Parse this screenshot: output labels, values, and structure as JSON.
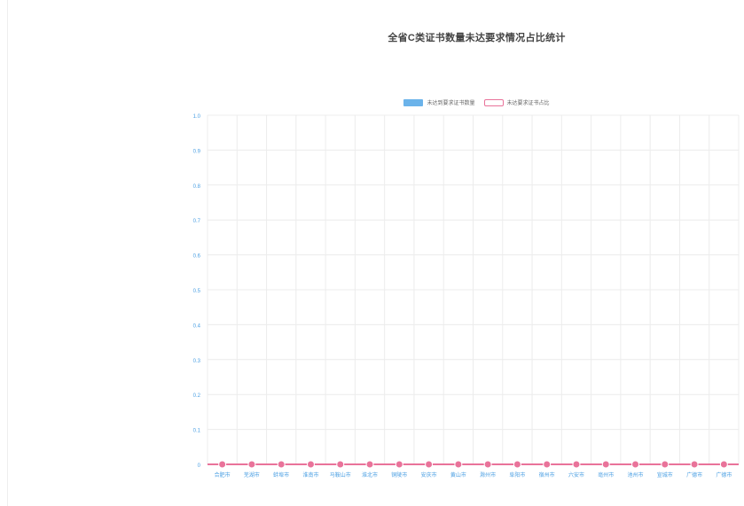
{
  "chart_data": {
    "type": "bar",
    "title": "全省C类证书数量未达要求情况占比统计",
    "xlabel": "",
    "ylabel": "",
    "categories": [
      "合肥市",
      "芜湖市",
      "蚌埠市",
      "淮南市",
      "马鞍山市",
      "淮北市",
      "铜陵市",
      "安庆市",
      "黄山市",
      "滁州市",
      "阜阳市",
      "宿州市",
      "六安市",
      "亳州市",
      "池州市",
      "宣城市",
      "广德市",
      "广德市"
    ],
    "series": [
      {
        "name": "未达到要求证书数量",
        "type": "bar",
        "color": "#6bb3ea",
        "values": [
          0,
          0,
          0,
          0,
          0,
          0,
          0,
          0,
          0,
          0,
          0,
          0,
          0,
          0,
          0,
          0,
          0,
          0
        ]
      },
      {
        "name": "未达要求证书占比",
        "type": "line",
        "color": "#e9739a",
        "values": [
          0,
          0,
          0,
          0,
          0,
          0,
          0,
          0,
          0,
          0,
          0,
          0,
          0,
          0,
          0,
          0,
          0,
          0
        ]
      }
    ],
    "ylim": [
      0,
      1
    ],
    "yticks": [
      "0",
      "0.1",
      "0.2",
      "0.3",
      "0.4",
      "0.5",
      "0.6",
      "0.7",
      "0.8",
      "0.9",
      "1.0"
    ],
    "grid": true,
    "legend": "top-center"
  }
}
